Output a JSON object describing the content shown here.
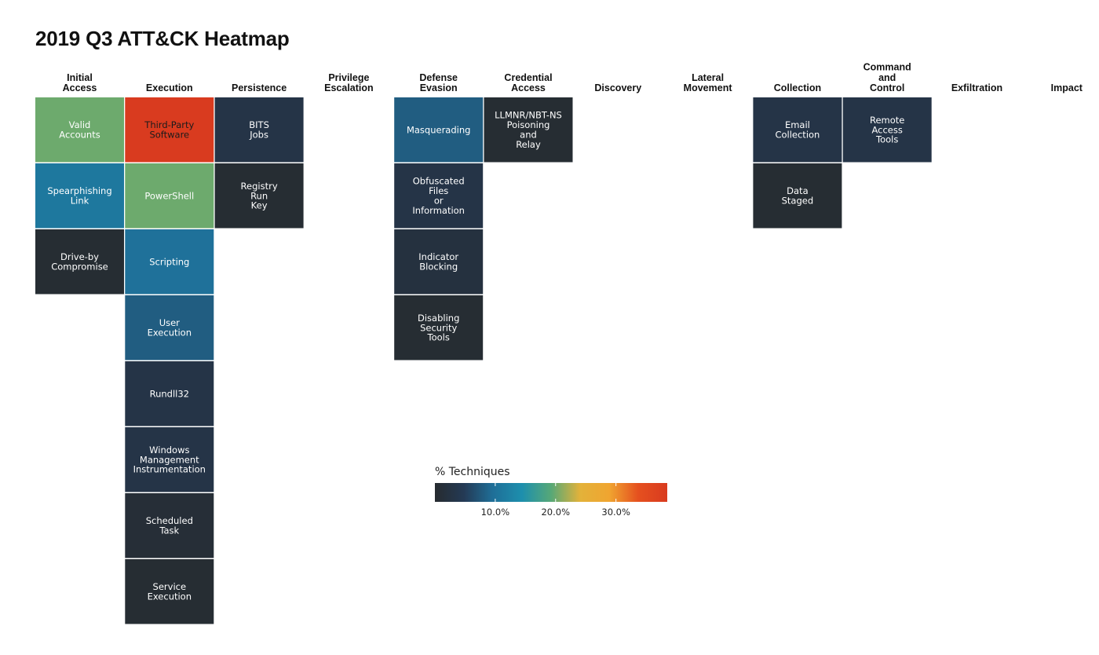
{
  "title": "2019 Q3 ATT&CK Heatmap",
  "chart_data": {
    "type": "heatmap",
    "title": "2019 Q3 ATT&CK Heatmap",
    "columns": [
      {
        "name": "Initial\nAccess",
        "techniques": [
          {
            "name": "Valid\nAccounts",
            "value": 20.0
          },
          {
            "name": "Spearphishing\nLink",
            "value": 11.0
          },
          {
            "name": "Drive-by\nCompromise",
            "value": 0.5
          }
        ]
      },
      {
        "name": "Execution",
        "techniques": [
          {
            "name": "Third-Party\nSoftware",
            "value": 38.5
          },
          {
            "name": "PowerShell",
            "value": 20.0
          },
          {
            "name": "Scripting",
            "value": 10.0
          },
          {
            "name": "User\nExecution",
            "value": 8.0
          },
          {
            "name": "Rundll32",
            "value": 3.0
          },
          {
            "name": "Windows\nManagement\nInstrumentation",
            "value": 3.0
          },
          {
            "name": "Scheduled\nTask",
            "value": 1.0
          },
          {
            "name": "Service\nExecution",
            "value": 0.5
          }
        ]
      },
      {
        "name": "Persistence",
        "techniques": [
          {
            "name": "BITS\nJobs",
            "value": 3.0
          },
          {
            "name": "Registry\nRun\nKey",
            "value": 0.5
          }
        ]
      },
      {
        "name": "Privilege\nEscalation",
        "techniques": []
      },
      {
        "name": "Defense\nEvasion",
        "techniques": [
          {
            "name": "Masquerading",
            "value": 8.0
          },
          {
            "name": "Obfuscated\nFiles\nor\nInformation",
            "value": 3.0
          },
          {
            "name": "Indicator\nBlocking",
            "value": 2.0
          },
          {
            "name": "Disabling\nSecurity\nTools",
            "value": 0.5
          }
        ]
      },
      {
        "name": "Credential\nAccess",
        "techniques": [
          {
            "name": "LLMNR/NBT-NS\nPoisoning\nand\nRelay",
            "value": 0.5
          }
        ]
      },
      {
        "name": "Discovery",
        "techniques": []
      },
      {
        "name": "Lateral\nMovement",
        "techniques": []
      },
      {
        "name": "Collection",
        "techniques": [
          {
            "name": "Email\nCollection",
            "value": 3.0
          },
          {
            "name": "Data\nStaged",
            "value": 0.5
          }
        ]
      },
      {
        "name": "Command\nand\nControl",
        "techniques": [
          {
            "name": "Remote\nAccess\nTools",
            "value": 3.0
          }
        ]
      },
      {
        "name": "Exfiltration",
        "techniques": []
      },
      {
        "name": "Impact",
        "techniques": []
      }
    ],
    "legend": {
      "title": "% Techniques",
      "ticks": [
        10,
        20,
        30
      ],
      "tick_labels": [
        "10.0%",
        "20.0%",
        "30.0%"
      ],
      "range": [
        0,
        38.5
      ],
      "colorscale": [
        "#262b2f",
        "#243a55",
        "#1f6f98",
        "#1d8fad",
        "#57a877",
        "#e3b23a",
        "#f0a530",
        "#e5501f",
        "#d93b1f"
      ]
    }
  }
}
